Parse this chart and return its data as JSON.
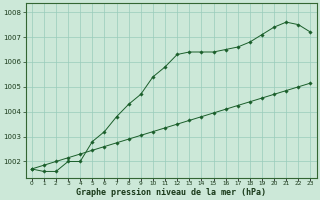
{
  "xlabel": "Graphe pression niveau de la mer (hPa)",
  "background_color": "#cce8d8",
  "grid_color": "#99ccbb",
  "line_color": "#1a5e2a",
  "marker_color": "#1a5e2a",
  "hours": [
    0,
    1,
    2,
    3,
    4,
    5,
    6,
    7,
    8,
    9,
    10,
    11,
    12,
    13,
    14,
    15,
    16,
    17,
    18,
    19,
    20,
    21,
    22,
    23
  ],
  "pressure_main": [
    1001.7,
    1001.6,
    1001.6,
    1002.0,
    1002.0,
    1002.8,
    1003.2,
    1003.8,
    1004.3,
    1004.7,
    1005.4,
    1005.8,
    1006.3,
    1006.4,
    1006.4,
    1006.4,
    1006.5,
    1006.6,
    1006.8,
    1007.1,
    1007.4,
    1007.6,
    1007.5,
    1007.2
  ],
  "pressure_linear": [
    1001.7,
    1001.85,
    1002.0,
    1002.15,
    1002.3,
    1002.45,
    1002.6,
    1002.75,
    1002.9,
    1003.05,
    1003.2,
    1003.35,
    1003.5,
    1003.65,
    1003.8,
    1003.95,
    1004.1,
    1004.25,
    1004.4,
    1004.55,
    1004.7,
    1004.85,
    1005.0,
    1005.15
  ],
  "ylim_min": 1001.35,
  "ylim_max": 1008.35,
  "yticks": [
    1002,
    1003,
    1004,
    1005,
    1006,
    1007,
    1008
  ],
  "xlim_min": -0.5,
  "xlim_max": 23.5
}
